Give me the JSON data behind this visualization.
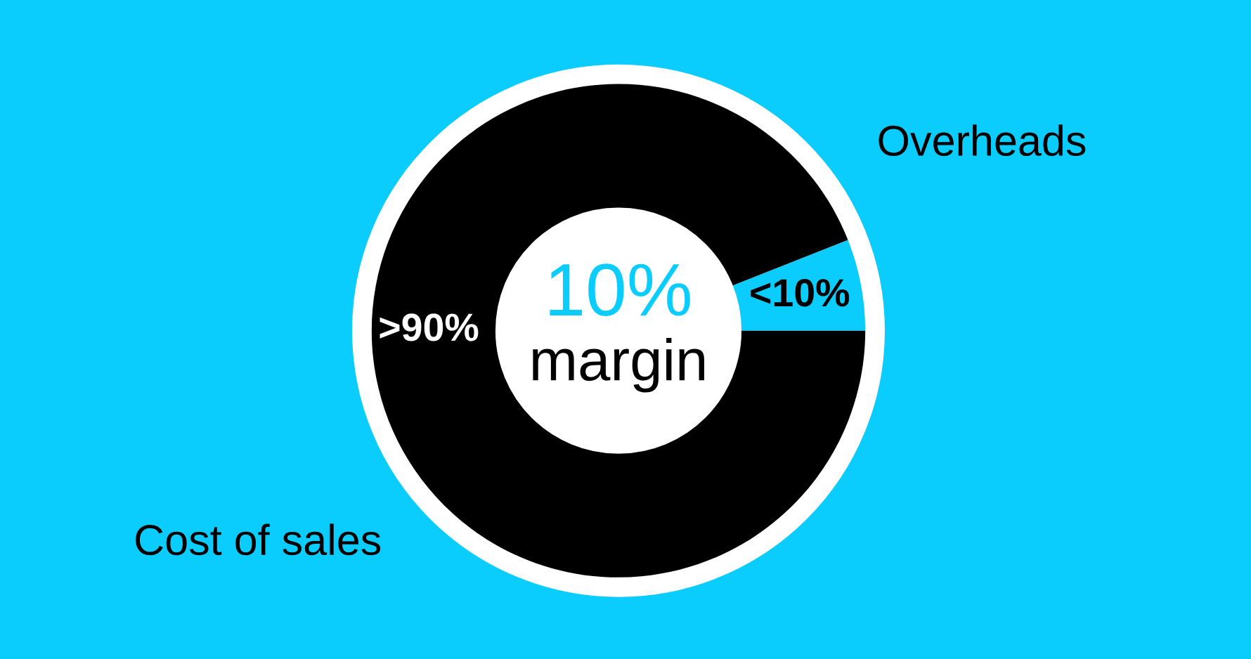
{
  "chart_data": {
    "type": "donut",
    "categories": [
      "Overheads",
      "Cost of sales"
    ],
    "values": [
      6,
      94
    ],
    "colors": [
      "#0bcdfd",
      "#000000"
    ],
    "value_labels": [
      "<10%",
      ">90%"
    ],
    "annotations": [
      "10%",
      "margin"
    ]
  }
}
